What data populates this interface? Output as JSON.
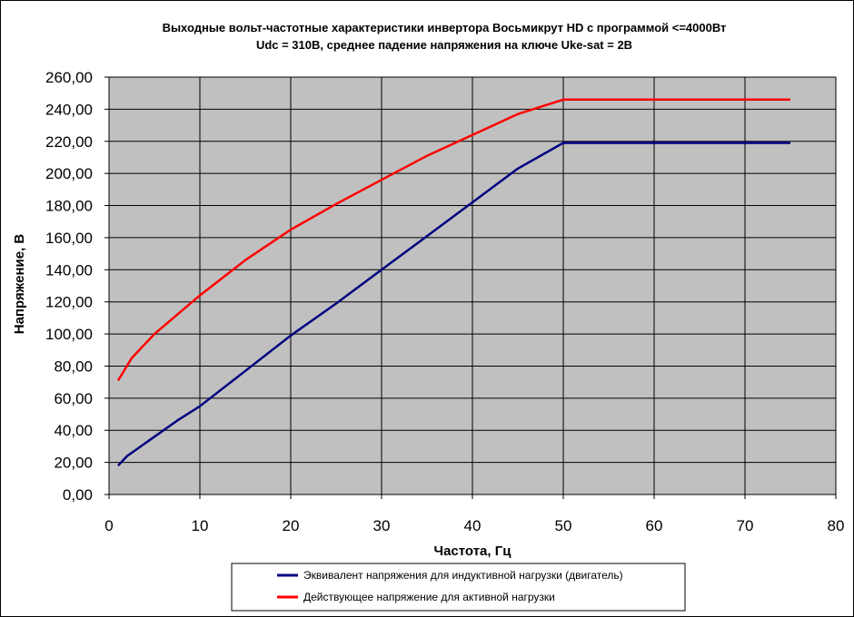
{
  "chart_data": {
    "type": "line",
    "title_line1": "Выходные вольт-частотные характеристики инвертора Восьмикрут HD с программой  <=4000Вт",
    "title_line2": "Udc = 310В, среднее падение напряжения на ключе Uke-sat = 2В",
    "xlabel": "Частота, Гц",
    "ylabel": "Напряжение, В",
    "xlim": [
      0,
      80
    ],
    "ylim": [
      0,
      260
    ],
    "x_ticks": [
      "0",
      "10",
      "20",
      "30",
      "40",
      "50",
      "60",
      "70",
      "80"
    ],
    "y_ticks": [
      "0,00",
      "20,00",
      "40,00",
      "60,00",
      "80,00",
      "100,00",
      "120,00",
      "140,00",
      "160,00",
      "180,00",
      "200,00",
      "220,00",
      "240,00",
      "260,00"
    ],
    "grid": true,
    "legend_position": "bottom",
    "plot_background": "#c0c0c0",
    "series": [
      {
        "name": "Эквивалент напряжения для индуктивной нагрузки (двигатель)",
        "color": "#000080",
        "x": [
          1,
          1.5,
          2,
          2.5,
          3,
          3.5,
          4,
          4.5,
          5,
          7.5,
          10,
          15,
          20,
          25,
          30,
          35,
          40,
          45,
          50,
          55,
          60,
          65,
          70,
          75
        ],
        "y": [
          18,
          21,
          24,
          26,
          28,
          30,
          32,
          34,
          36,
          46,
          55,
          77,
          99,
          119,
          140,
          161,
          182,
          203,
          219,
          219,
          219,
          219,
          219,
          219
        ]
      },
      {
        "name": "Действующее напряжение для активной нагрузки",
        "color": "#ff0000",
        "x": [
          1,
          2.5,
          5,
          7.5,
          10,
          15,
          20,
          25,
          30,
          35,
          40,
          45,
          50,
          55,
          60,
          65,
          70,
          75
        ],
        "y": [
          71,
          85,
          100,
          112,
          124,
          146,
          165,
          181,
          196,
          211,
          224,
          237,
          246,
          246,
          246,
          246,
          246,
          246
        ]
      }
    ]
  }
}
